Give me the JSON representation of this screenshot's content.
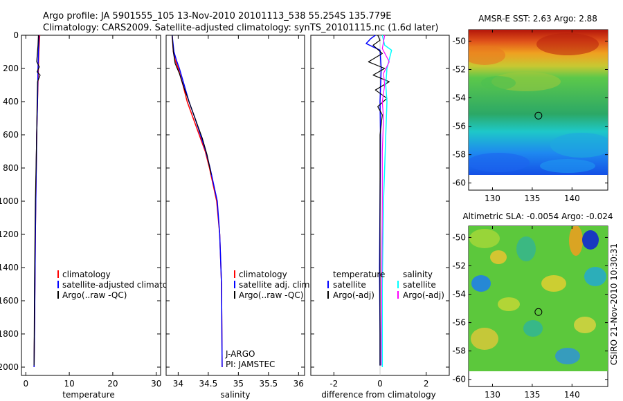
{
  "figure": {
    "title_line1": "Argo profile: JA 5901555_105 13-Nov-2010 20101113_538 55.254S 135.779E",
    "title_line2": "Climatology: CARS2009. Satellite-adjusted climatology: synTS_20101115.nc (1.6d later)",
    "side_label": "CSIRO 21-Nov-2010 10:30:31"
  },
  "colors": {
    "climatology": "#ff0000",
    "satellite": "#0000ff",
    "argo": "#000000",
    "sal_satellite": "#00ffff",
    "sal_argo": "#ff00ff"
  },
  "chart_data": [
    {
      "id": "temperature",
      "type": "line",
      "xlabel": "temperature",
      "xlim": [
        -1,
        31
      ],
      "ylim": [
        2050,
        0
      ],
      "xticks": [
        "0",
        "10",
        "20",
        "30"
      ],
      "xtick_values": [
        0,
        10,
        20,
        30
      ],
      "yticks": [
        "0",
        "200",
        "400",
        "600",
        "800",
        "1000",
        "1200",
        "1400",
        "1600",
        "1800",
        "2000"
      ],
      "ytick_values": [
        0,
        200,
        400,
        600,
        800,
        1000,
        1200,
        1400,
        1600,
        1800,
        2000
      ],
      "legend": [
        "climatology",
        "satellite-adjusted climatology",
        "Argo(..raw -QC)"
      ],
      "series": [
        {
          "name": "climatology",
          "color": "#ff0000",
          "width": 1.5,
          "x": [
            3.2,
            3.0,
            2.9,
            2.7,
            2.5,
            2.4,
            2.3,
            2.2,
            2.1,
            2.0,
            1.9
          ],
          "y": [
            0,
            100,
            200,
            400,
            600,
            800,
            1000,
            1200,
            1500,
            1800,
            2000
          ]
        },
        {
          "name": "satellite-adjusted climatology",
          "color": "#0000ff",
          "width": 1.5,
          "x": [
            3.0,
            2.9,
            2.8,
            2.7,
            2.5,
            2.4,
            2.3,
            2.2,
            2.1,
            2.0,
            1.9
          ],
          "y": [
            0,
            100,
            200,
            400,
            600,
            800,
            1000,
            1200,
            1500,
            1800,
            2000
          ]
        },
        {
          "name": "Argo(..raw -QC)",
          "color": "#000000",
          "width": 1.2,
          "x": [
            2.9,
            2.8,
            2.5,
            3.1,
            2.6,
            3.3,
            2.7,
            2.6,
            2.5,
            2.2,
            2.0,
            1.9
          ],
          "y": [
            0,
            60,
            160,
            190,
            220,
            240,
            280,
            400,
            600,
            1000,
            1500,
            1990
          ]
        }
      ]
    },
    {
      "id": "salinity",
      "type": "line",
      "xlabel": "salinity",
      "xlim": [
        33.8,
        36.1
      ],
      "ylim": [
        2050,
        0
      ],
      "xticks": [
        "34",
        "34.5",
        "35",
        "35.5",
        "36"
      ],
      "xtick_values": [
        34,
        34.5,
        35,
        35.5,
        36
      ],
      "legend": [
        "climatology",
        "satellite adj. clim.",
        "Argo(..raw -QC)"
      ],
      "annotations": [
        "J-ARGO",
        "PI: JAMSTEC"
      ],
      "series": [
        {
          "name": "climatology",
          "color": "#ff0000",
          "width": 1.5,
          "x": [
            33.9,
            33.92,
            33.95,
            34.0,
            34.08,
            34.15,
            34.25,
            34.35,
            34.45,
            34.52,
            34.58,
            34.64,
            34.69,
            34.72,
            34.73
          ],
          "y": [
            0,
            100,
            150,
            200,
            300,
            400,
            500,
            600,
            700,
            800,
            900,
            1000,
            1200,
            1500,
            2000
          ]
        },
        {
          "name": "satellite adj. clim.",
          "color": "#0000ff",
          "width": 1.5,
          "x": [
            33.9,
            33.93,
            33.97,
            34.02,
            34.1,
            34.18,
            34.28,
            34.37,
            34.46,
            34.53,
            34.59,
            34.65,
            34.69,
            34.72,
            34.73
          ],
          "y": [
            0,
            100,
            150,
            200,
            300,
            400,
            500,
            600,
            700,
            800,
            900,
            1000,
            1200,
            1500,
            2000
          ]
        },
        {
          "name": "Argo(..raw -QC)",
          "color": "#000000",
          "width": 1.2,
          "x": [
            33.9,
            33.92,
            33.95,
            34.02,
            34.1,
            34.2,
            34.3,
            34.4,
            34.48,
            34.55
          ],
          "y": [
            0,
            100,
            170,
            230,
            320,
            420,
            520,
            620,
            720,
            840
          ]
        }
      ]
    },
    {
      "id": "difference",
      "type": "line",
      "xlabel": "difference from climatology",
      "xlim": [
        -3,
        3
      ],
      "ylim": [
        2050,
        0
      ],
      "xticks": [
        "-2",
        "0",
        "2"
      ],
      "xtick_values": [
        -2,
        0,
        2
      ],
      "legend_left_title": "temperature",
      "legend_left": [
        "satellite",
        "Argo(-adj)"
      ],
      "legend_right_title": "salinity",
      "legend_right": [
        "satellite",
        "Argo(-adj)"
      ],
      "series": [
        {
          "name": "temperature satellite",
          "color": "#0000ff",
          "width": 1.5,
          "x": [
            -0.2,
            -0.4,
            -0.6,
            -0.3,
            0.0,
            0.05,
            0.0,
            0.02,
            0.0,
            -0.02,
            0.0,
            0.0
          ],
          "y": [
            0,
            20,
            50,
            70,
            90,
            200,
            400,
            600,
            1000,
            1400,
            1800,
            1990
          ]
        },
        {
          "name": "temperature Argo(-adj)",
          "color": "#000000",
          "width": 1.2,
          "x": [
            -0.1,
            0.0,
            -0.3,
            0.1,
            -0.5,
            0.2,
            -0.3,
            0.4,
            -0.2,
            0.3,
            -0.1,
            0.1,
            0.0,
            0.0,
            0.0
          ],
          "y": [
            0,
            30,
            60,
            110,
            160,
            200,
            240,
            280,
            330,
            380,
            430,
            480,
            600,
            1000,
            1990
          ]
        },
        {
          "name": "salinity satellite",
          "color": "#00ffff",
          "width": 1.5,
          "x": [
            0.1,
            0.2,
            0.5,
            0.3,
            0.25,
            0.3,
            0.25,
            0.2,
            0.15,
            0.1,
            0.1
          ],
          "y": [
            0,
            60,
            90,
            200,
            300,
            400,
            600,
            800,
            1000,
            1500,
            2000
          ]
        },
        {
          "name": "salinity Argo(-adj)",
          "color": "#ff00ff",
          "width": 1.2,
          "x": [
            0.2,
            0.1,
            0.4,
            0.15,
            0.2,
            0.1,
            0.15,
            0.1,
            0.1,
            0.05
          ],
          "y": [
            0,
            80,
            160,
            230,
            300,
            400,
            500,
            700,
            1000,
            1990
          ]
        }
      ]
    },
    {
      "id": "sst_map",
      "type": "heatmap",
      "title": "AMSR-E SST: 2.63 Argo: 2.88",
      "xlim": [
        127,
        144.5
      ],
      "ylim": [
        -60.5,
        -49.2
      ],
      "xticks": [
        "130",
        "135",
        "140"
      ],
      "xtick_values": [
        130,
        135,
        140
      ],
      "yticks": [
        "-50",
        "-52",
        "-54",
        "-56",
        "-58",
        "-60"
      ],
      "ytick_values": [
        -50,
        -52,
        -54,
        -56,
        -58,
        -60
      ],
      "marker": {
        "lon": 135.779,
        "lat": -55.254
      }
    },
    {
      "id": "sla_map",
      "type": "heatmap",
      "title": "Altimetric SLA: -0.0054 Argo: -0.024",
      "xlim": [
        127,
        144.5
      ],
      "ylim": [
        -60.5,
        -49.2
      ],
      "xticks": [
        "130",
        "135",
        "140"
      ],
      "xtick_values": [
        130,
        135,
        140
      ],
      "yticks": [
        "-50",
        "-52",
        "-54",
        "-56",
        "-58",
        "-60"
      ],
      "ytick_values": [
        -50,
        -52,
        -54,
        -56,
        -58,
        -60
      ],
      "marker": {
        "lon": 135.779,
        "lat": -55.254
      }
    }
  ]
}
